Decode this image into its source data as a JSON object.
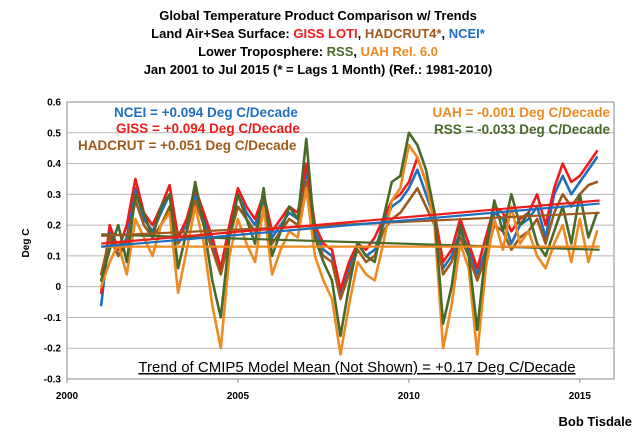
{
  "chart_data": {
    "type": "line",
    "title": {
      "line1": "Global Temperature Product Comparison w/ Trends",
      "line2_prefix": "Land Air+Sea Surface: ",
      "line2_giss": "GISS LOTI",
      "line2_sep1": ", ",
      "line2_hadcrut": "HADCRUT4*",
      "line2_sep2": ", ",
      "line2_ncei": "NCEI*",
      "line3_prefix": "Lower Troposphere: ",
      "line3_rss": "RSS",
      "line3_sep": ", ",
      "line3_uah": "UAH Rel. 6.0",
      "line4": "Jan 2001 to Jul 2015 (* = Lags 1 Month) (Ref.: 1981-2010)"
    },
    "ylabel": "Deg C",
    "xlabel": "",
    "ylim": [
      -0.3,
      0.6
    ],
    "xlim": [
      2000,
      2016
    ],
    "yticks": [
      "0.6",
      "0.5",
      "0.4",
      "0.3",
      "0.2",
      "0.1",
      "0",
      "-0.1",
      "-0.2",
      "-0.3"
    ],
    "xticks": [
      "2000",
      "2005",
      "2010",
      "2015"
    ],
    "grid": true,
    "colors": {
      "ncei": "#1f6fc1",
      "giss": "#ee1c1c",
      "hadcrut": "#9e5a1c",
      "uah": "#ee8a22",
      "rss": "#4a6a2a",
      "grid": "#b8b8b8"
    },
    "annotations": {
      "ncei": "NCEI = +0.094 Deg C/Decade",
      "giss": "GISS = +0.094 Deg C/Decade",
      "hadcrut": "HADCRUT = +0.051 Deg C/Decade",
      "uah": "UAH = -0.001 Deg C/Decade",
      "rss": "RSS = -0.033 Deg C/Decade",
      "cmip5": "Trend of CMIP5 Model Mean (Not Shown) = +0.17 Deg C/Decade"
    },
    "trends": [
      {
        "series": "rss",
        "x": [
          2001.0,
          2015.58
        ],
        "y": [
          0.17,
          0.12
        ]
      },
      {
        "series": "uah",
        "x": [
          2001.0,
          2015.58
        ],
        "y": [
          0.13,
          0.13
        ]
      },
      {
        "series": "hadcrut",
        "x": [
          2001.0,
          2015.58
        ],
        "y": [
          0.165,
          0.24
        ]
      },
      {
        "series": "giss",
        "x": [
          2001.0,
          2015.58
        ],
        "y": [
          0.14,
          0.28
        ]
      },
      {
        "series": "ncei",
        "x": [
          2001.0,
          2015.58
        ],
        "y": [
          0.13,
          0.27
        ]
      }
    ],
    "series_x": [
      2001.0,
      2001.25,
      2001.5,
      2001.75,
      2002.0,
      2002.25,
      2002.5,
      2002.75,
      2003.0,
      2003.25,
      2003.5,
      2003.75,
      2004.0,
      2004.25,
      2004.5,
      2004.75,
      2005.0,
      2005.25,
      2005.5,
      2005.75,
      2006.0,
      2006.25,
      2006.5,
      2006.75,
      2007.0,
      2007.25,
      2007.5,
      2007.75,
      2008.0,
      2008.25,
      2008.5,
      2008.75,
      2009.0,
      2009.25,
      2009.5,
      2009.75,
      2010.0,
      2010.25,
      2010.5,
      2010.75,
      2011.0,
      2011.25,
      2011.5,
      2011.75,
      2012.0,
      2012.25,
      2012.5,
      2012.75,
      2013.0,
      2013.25,
      2013.5,
      2013.75,
      2014.0,
      2014.25,
      2014.5,
      2014.75,
      2015.0,
      2015.25,
      2015.5
    ],
    "series": [
      {
        "key": "ncei",
        "values": [
          -0.06,
          0.18,
          0.1,
          0.16,
          0.32,
          0.22,
          0.18,
          0.24,
          0.3,
          0.16,
          0.2,
          0.3,
          0.22,
          0.14,
          0.06,
          0.18,
          0.3,
          0.24,
          0.2,
          0.28,
          0.16,
          0.2,
          0.24,
          0.22,
          0.38,
          0.18,
          0.12,
          0.1,
          -0.02,
          0.06,
          0.14,
          0.1,
          0.12,
          0.2,
          0.26,
          0.28,
          0.32,
          0.38,
          0.3,
          0.22,
          0.06,
          0.1,
          0.18,
          0.12,
          0.04,
          0.12,
          0.24,
          0.22,
          0.14,
          0.2,
          0.22,
          0.26,
          0.16,
          0.3,
          0.36,
          0.3,
          0.34,
          0.38,
          0.42
        ]
      },
      {
        "key": "giss",
        "values": [
          -0.02,
          0.2,
          0.12,
          0.2,
          0.35,
          0.24,
          0.2,
          0.26,
          0.33,
          0.16,
          0.22,
          0.32,
          0.24,
          0.16,
          0.06,
          0.2,
          0.32,
          0.26,
          0.22,
          0.3,
          0.18,
          0.22,
          0.26,
          0.24,
          0.4,
          0.2,
          0.14,
          0.12,
          -0.01,
          0.08,
          0.14,
          0.12,
          0.16,
          0.22,
          0.28,
          0.3,
          0.34,
          0.42,
          0.34,
          0.24,
          0.08,
          0.12,
          0.22,
          0.14,
          0.06,
          0.16,
          0.26,
          0.24,
          0.18,
          0.22,
          0.24,
          0.3,
          0.2,
          0.32,
          0.4,
          0.34,
          0.36,
          0.4,
          0.44
        ]
      },
      {
        "key": "hadcrut",
        "values": [
          0.04,
          0.16,
          0.1,
          0.14,
          0.28,
          0.2,
          0.16,
          0.2,
          0.26,
          0.14,
          0.18,
          0.28,
          0.2,
          0.12,
          0.04,
          0.16,
          0.26,
          0.22,
          0.18,
          0.24,
          0.14,
          0.18,
          0.22,
          0.2,
          0.34,
          0.16,
          0.1,
          0.08,
          -0.04,
          0.04,
          0.12,
          0.08,
          0.1,
          0.18,
          0.22,
          0.24,
          0.28,
          0.32,
          0.26,
          0.2,
          0.04,
          0.08,
          0.16,
          0.1,
          0.02,
          0.1,
          0.2,
          0.18,
          0.12,
          0.16,
          0.18,
          0.22,
          0.14,
          0.24,
          0.3,
          0.26,
          0.3,
          0.33,
          0.34
        ]
      },
      {
        "key": "uah",
        "values": [
          0.0,
          0.08,
          0.14,
          0.04,
          0.22,
          0.16,
          0.1,
          0.2,
          0.24,
          -0.02,
          0.12,
          0.26,
          0.14,
          -0.06,
          -0.2,
          0.1,
          0.22,
          0.14,
          0.08,
          0.26,
          0.04,
          0.12,
          0.18,
          0.16,
          0.32,
          0.1,
          0.02,
          -0.04,
          -0.22,
          -0.06,
          0.08,
          0.04,
          0.02,
          0.14,
          0.28,
          0.32,
          0.46,
          0.42,
          0.34,
          0.2,
          -0.2,
          -0.06,
          0.14,
          0.06,
          -0.22,
          0.06,
          0.22,
          0.12,
          0.26,
          0.14,
          0.18,
          0.1,
          0.06,
          0.14,
          0.2,
          0.08,
          0.22,
          0.08,
          0.18
        ]
      },
      {
        "key": "rss",
        "values": [
          0.02,
          0.12,
          0.2,
          0.08,
          0.3,
          0.24,
          0.16,
          0.26,
          0.3,
          0.06,
          0.18,
          0.34,
          0.2,
          0.02,
          -0.1,
          0.16,
          0.3,
          0.22,
          0.14,
          0.32,
          0.1,
          0.18,
          0.26,
          0.22,
          0.48,
          0.16,
          0.08,
          0.02,
          -0.16,
          0.0,
          0.14,
          0.1,
          0.08,
          0.22,
          0.34,
          0.36,
          0.5,
          0.46,
          0.38,
          0.24,
          -0.12,
          0.0,
          0.2,
          0.1,
          -0.14,
          0.12,
          0.28,
          0.18,
          0.3,
          0.2,
          0.24,
          0.14,
          0.1,
          0.18,
          0.26,
          0.14,
          0.3,
          0.16,
          0.24
        ]
      }
    ]
  },
  "credit": "Bob Tisdale"
}
